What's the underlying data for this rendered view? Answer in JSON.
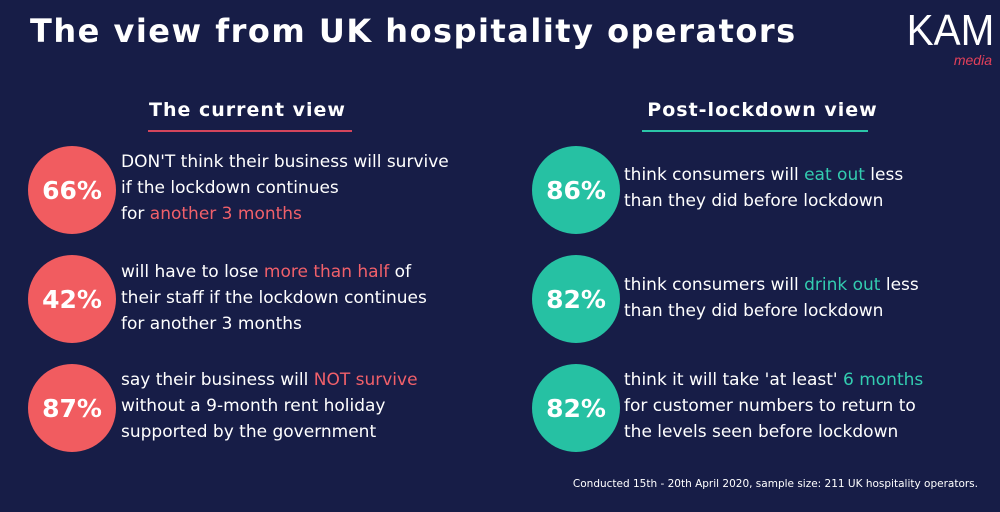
{
  "title": "The view from UK hospitality operators",
  "logo": {
    "main": "KAM",
    "sub": "media"
  },
  "left": {
    "heading": "The current view",
    "stats": [
      {
        "percent": "66%",
        "lines": [
          [
            {
              "t": "DON'T think their business will survive",
              "hl": false
            }
          ],
          [
            {
              "t": "if the lockdown continues",
              "hl": false
            }
          ],
          [
            {
              "t": "for ",
              "hl": false
            },
            {
              "t": "another 3 months",
              "hl": true
            }
          ]
        ]
      },
      {
        "percent": "42%",
        "lines": [
          [
            {
              "t": "will have to lose ",
              "hl": false
            },
            {
              "t": "more than half",
              "hl": true
            },
            {
              "t": " of",
              "hl": false
            }
          ],
          [
            {
              "t": "their staff if the lockdown continues",
              "hl": false
            }
          ],
          [
            {
              "t": "for another 3 months",
              "hl": false
            }
          ]
        ]
      },
      {
        "percent": "87%",
        "lines": [
          [
            {
              "t": "say their business will ",
              "hl": false
            },
            {
              "t": "NOT survive",
              "hl": true
            }
          ],
          [
            {
              "t": "without a 9-month rent holiday",
              "hl": false
            }
          ],
          [
            {
              "t": "supported by the government",
              "hl": false
            }
          ]
        ]
      }
    ]
  },
  "right": {
    "heading": "Post-lockdown view",
    "stats": [
      {
        "percent": "86%",
        "lines": [
          [
            {
              "t": "think consumers will ",
              "hl": false
            },
            {
              "t": "eat out",
              "hl": true
            },
            {
              "t": " less",
              "hl": false
            }
          ],
          [
            {
              "t": "than they did before lockdown",
              "hl": false
            }
          ]
        ]
      },
      {
        "percent": "82%",
        "lines": [
          [
            {
              "t": "think consumers will ",
              "hl": false
            },
            {
              "t": "drink out",
              "hl": true
            },
            {
              "t": " less",
              "hl": false
            }
          ],
          [
            {
              "t": "than they did before lockdown",
              "hl": false
            }
          ]
        ]
      },
      {
        "percent": "82%",
        "lines": [
          [
            {
              "t": "think it will take 'at least' ",
              "hl": false
            },
            {
              "t": "6 months",
              "hl": true
            }
          ],
          [
            {
              "t": "for customer numbers to return to",
              "hl": false
            }
          ],
          [
            {
              "t": "the levels seen before lockdown",
              "hl": false
            }
          ]
        ]
      }
    ]
  },
  "footnote": "Conducted 15th - 20th April 2020, sample size: 211 UK hospitality operators.",
  "colors": {
    "background": "#171d47",
    "red": "#f15c60",
    "green": "#26c1a3",
    "red_text": "#f1606a",
    "green_text": "#33cdb0"
  }
}
